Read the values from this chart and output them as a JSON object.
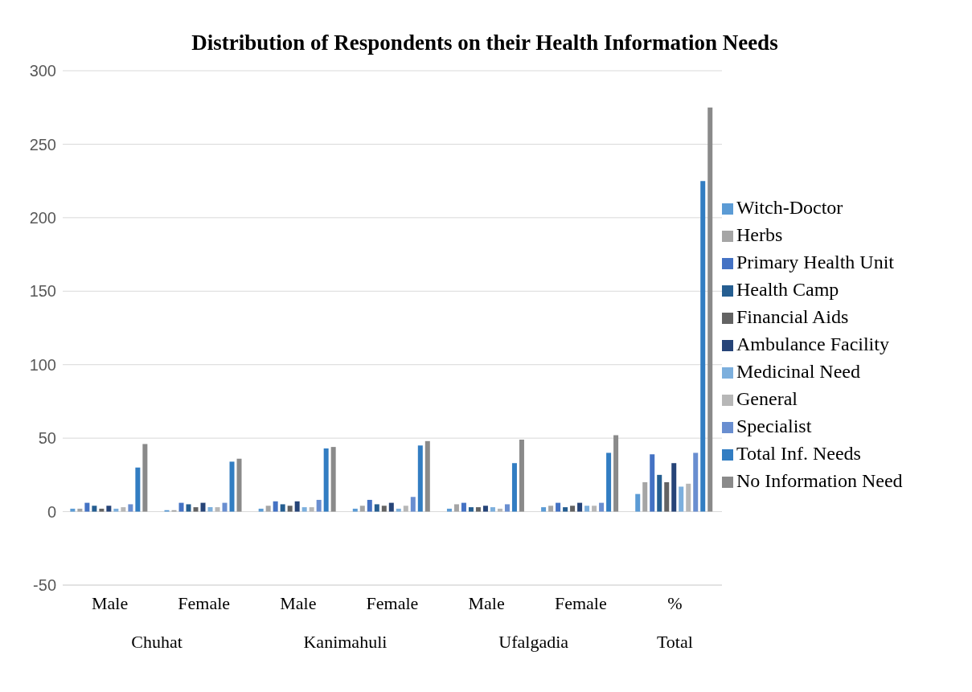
{
  "chart_data": {
    "type": "bar",
    "title": "Distribution of Respondents on their Health Information Needs",
    "categories": [
      "Male",
      "Female",
      "Male",
      "Female",
      "Male",
      "Female",
      "%"
    ],
    "annotations": [
      "Chuhat",
      "Kanimahuli",
      "Ufalgadia",
      "Total"
    ],
    "series": [
      {
        "name": "Witch-Doctor",
        "color": "#5b9bd5",
        "values": [
          2,
          1,
          2,
          2,
          2,
          3,
          12
        ]
      },
      {
        "name": "Herbs",
        "color": "#a5a5a5",
        "values": [
          2,
          1,
          4,
          4,
          5,
          4,
          20
        ]
      },
      {
        "name": "Primary Health Unit",
        "color": "#4472c4",
        "values": [
          6,
          6,
          7,
          8,
          6,
          6,
          39
        ]
      },
      {
        "name": "Health Camp",
        "color": "#255e91",
        "values": [
          4,
          5,
          5,
          5,
          3,
          3,
          25
        ]
      },
      {
        "name": "Financial Aids",
        "color": "#636363",
        "values": [
          2,
          3,
          4,
          4,
          3,
          4,
          20
        ]
      },
      {
        "name": "Ambulance Facility",
        "color": "#264478",
        "values": [
          4,
          6,
          7,
          6,
          4,
          6,
          33
        ]
      },
      {
        "name": "Medicinal Need",
        "color": "#7cafdd",
        "values": [
          2,
          3,
          3,
          2,
          3,
          4,
          17
        ]
      },
      {
        "name": "General",
        "color": "#b7b7b7",
        "values": [
          3,
          3,
          3,
          4,
          2,
          4,
          19
        ]
      },
      {
        "name": "Specialist",
        "color": "#698ed0",
        "values": [
          5,
          6,
          8,
          10,
          5,
          6,
          40
        ]
      },
      {
        "name": "Total Inf. Needs",
        "color": "#327dc2",
        "values": [
          30,
          34,
          43,
          45,
          33,
          40,
          225
        ]
      },
      {
        "name": "No Information Need",
        "color": "#8a8a8a",
        "values": [
          46,
          36,
          44,
          48,
          49,
          52,
          275
        ]
      }
    ],
    "ylim": [
      -50,
      300
    ],
    "yticks": [
      -50,
      0,
      50,
      100,
      150,
      200,
      250,
      300
    ],
    "grid": "y",
    "legend": "right"
  }
}
